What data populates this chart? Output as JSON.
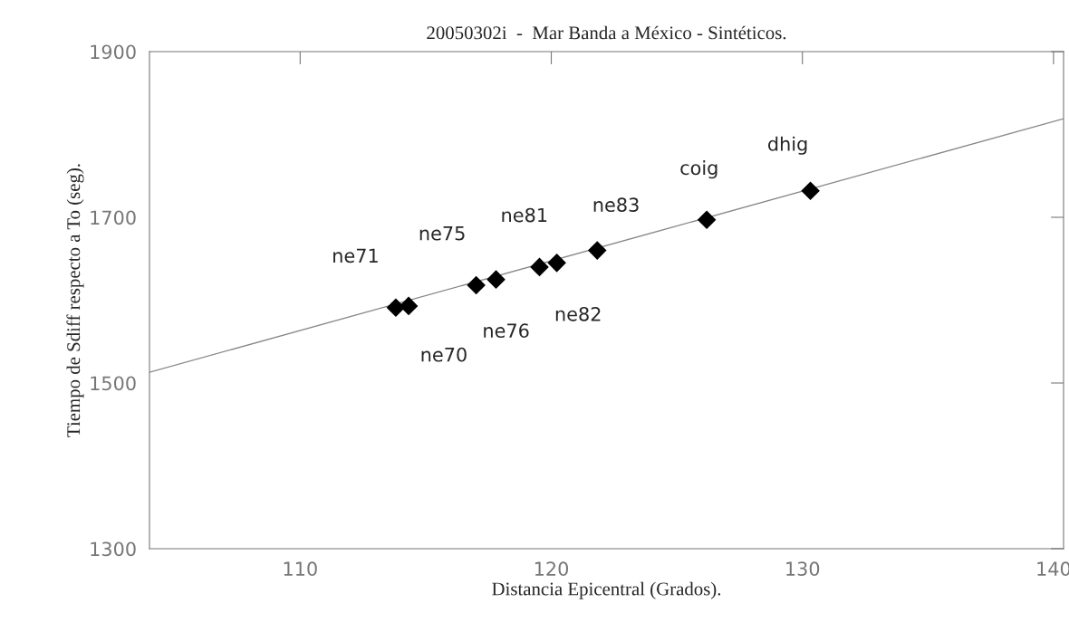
{
  "chart_data": {
    "type": "scatter",
    "title": "20050302i  -  Mar Banda a México - Sintéticos.",
    "xlabel": "Distancia Epicentral (Grados).",
    "ylabel": "Tiempo de Sdiff respecto a To (seg).",
    "series": [
      {
        "color": "#000000",
        "marker": "diamond",
        "x": [
          113.81,
          114.32,
          117.01,
          117.8,
          119.53,
          120.22,
          121.83,
          126.19,
          130.32
        ],
        "values": [
          1591,
          1593,
          1618,
          1625,
          1640,
          1645,
          1660,
          1697,
          1732
        ]
      },
      {
        "type": "line",
        "color": "#888888",
        "line_style": "solid",
        "x": [
          104,
          140.4
        ],
        "values": [
          1513,
          1819
        ]
      }
    ],
    "annotations": [
      {
        "text": "ne71",
        "x": 113.81,
        "y": 1591
      },
      {
        "text": "ne70",
        "x": 114.32,
        "y": 1593
      },
      {
        "text": "ne75",
        "x": 117.01,
        "y": 1618
      },
      {
        "text": "ne76",
        "x": 117.8,
        "y": 1625
      },
      {
        "text": "ne81",
        "x": 119.53,
        "y": 1640
      },
      {
        "text": "ne82",
        "x": 120.22,
        "y": 1645
      },
      {
        "text": "ne83",
        "x": 121.83,
        "y": 1660
      },
      {
        "text": "coig",
        "x": 126.19,
        "y": 1697
      },
      {
        "text": "dhig",
        "x": 130.32,
        "y": 1732
      }
    ],
    "xlim": [
      104,
      140.4
    ],
    "xticks": [
      110,
      120,
      130,
      140
    ],
    "ylim": [
      1300,
      1900
    ],
    "yticks": [
      1300,
      1500,
      1700,
      1900
    ],
    "grid": false,
    "legend": false
  }
}
